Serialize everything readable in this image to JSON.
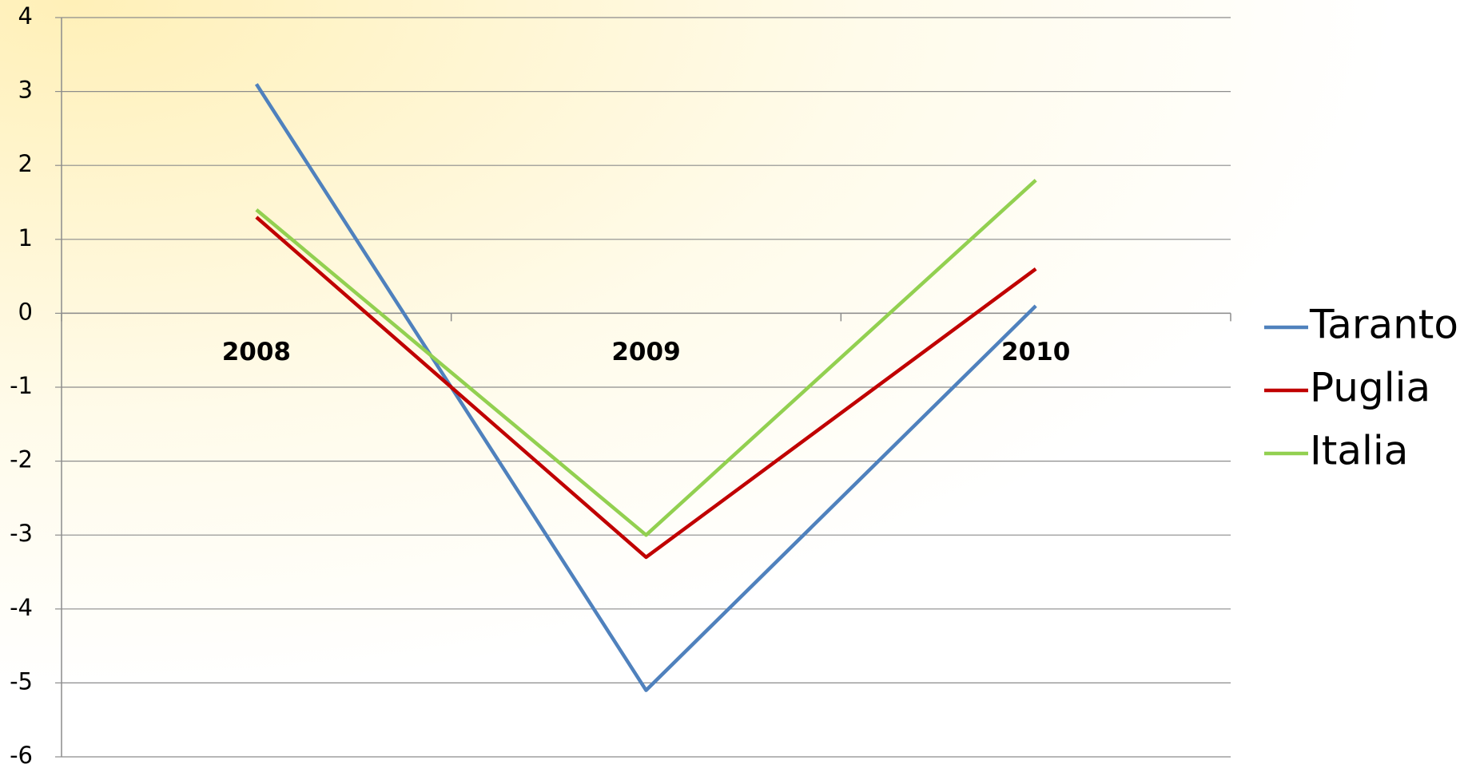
{
  "chart_data": {
    "type": "line",
    "categories": [
      "2008",
      "2009",
      "2010"
    ],
    "series": [
      {
        "name": "Taranto",
        "color": "#4f81bd",
        "values": [
          3.1,
          -5.1,
          0.1
        ]
      },
      {
        "name": "Puglia",
        "color": "#c00000",
        "values": [
          1.3,
          -3.3,
          0.6
        ]
      },
      {
        "name": "Italia",
        "color": "#92d050",
        "values": [
          1.4,
          -3.0,
          1.8
        ]
      }
    ],
    "ylim": [
      -6,
      4
    ],
    "yticks": [
      -6,
      -5,
      -4,
      -3,
      -2,
      -1,
      0,
      1,
      2,
      3,
      4
    ],
    "grid": true,
    "legend": "right"
  }
}
